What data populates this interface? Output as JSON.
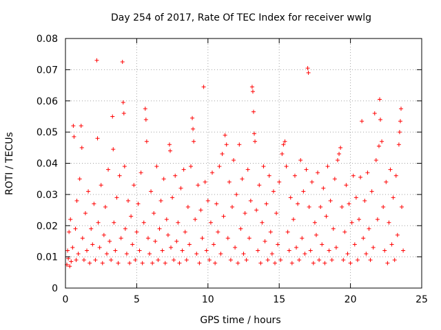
{
  "chart_data": {
    "type": "scatter",
    "title": "Day 254 of 2017, Rate Of TEC Index for receiver wwlg",
    "xlabel": "GPS time / hours",
    "ylabel": "ROTI / TECUs",
    "xlim": [
      0,
      25
    ],
    "ylim": [
      0,
      0.08
    ],
    "xticks": [
      0,
      5,
      10,
      15,
      20,
      25
    ],
    "xtick_labels": [
      "0",
      "5",
      "10",
      "15",
      "20",
      "25"
    ],
    "yticks": [
      0,
      0.01,
      0.02,
      0.03,
      0.04,
      0.05,
      0.06,
      0.07,
      0.08
    ],
    "ytick_labels": [
      "0",
      "0.01",
      "0.02",
      "0.03",
      "0.04",
      "0.05",
      "0.06",
      "0.07",
      "0.08"
    ],
    "grid": true,
    "marker": "+",
    "color": "#ff0000",
    "series": [
      {
        "name": "ROTI",
        "points": [
          [
            0.1,
            0.0075
          ],
          [
            0.15,
            0.012
          ],
          [
            0.2,
            0.0095
          ],
          [
            0.25,
            0.018
          ],
          [
            0.3,
            0.007
          ],
          [
            0.35,
            0.022
          ],
          [
            0.4,
            0.0085
          ],
          [
            0.5,
            0.013
          ],
          [
            0.55,
            0.052
          ],
          [
            0.6,
            0.0485
          ],
          [
            0.7,
            0.019
          ],
          [
            0.75,
            0.009
          ],
          [
            0.8,
            0.028
          ],
          [
            0.9,
            0.011
          ],
          [
            1.0,
            0.035
          ],
          [
            1.1,
            0.052
          ],
          [
            1.15,
            0.045
          ],
          [
            1.2,
            0.016
          ],
          [
            1.3,
            0.009
          ],
          [
            1.4,
            0.024
          ],
          [
            1.5,
            0.012
          ],
          [
            1.6,
            0.031
          ],
          [
            1.7,
            0.008
          ],
          [
            1.8,
            0.019
          ],
          [
            1.9,
            0.014
          ],
          [
            2.0,
            0.027
          ],
          [
            2.1,
            0.009
          ],
          [
            2.2,
            0.073
          ],
          [
            2.25,
            0.048
          ],
          [
            2.3,
            0.021
          ],
          [
            2.4,
            0.013
          ],
          [
            2.5,
            0.033
          ],
          [
            2.6,
            0.008
          ],
          [
            2.7,
            0.017
          ],
          [
            2.8,
            0.026
          ],
          [
            2.9,
            0.011
          ],
          [
            3.0,
            0.038
          ],
          [
            3.1,
            0.015
          ],
          [
            3.2,
            0.009
          ],
          [
            3.3,
            0.055
          ],
          [
            3.35,
            0.0445
          ],
          [
            3.4,
            0.021
          ],
          [
            3.5,
            0.012
          ],
          [
            3.6,
            0.029
          ],
          [
            3.7,
            0.008
          ],
          [
            3.8,
            0.036
          ],
          [
            3.9,
            0.016
          ],
          [
            4.0,
            0.0725
          ],
          [
            4.05,
            0.0595
          ],
          [
            4.1,
            0.056
          ],
          [
            4.15,
            0.039
          ],
          [
            4.2,
            0.019
          ],
          [
            4.3,
            0.011
          ],
          [
            4.4,
            0.028
          ],
          [
            4.5,
            0.008
          ],
          [
            4.6,
            0.023
          ],
          [
            4.7,
            0.014
          ],
          [
            4.8,
            0.033
          ],
          [
            4.9,
            0.009
          ],
          [
            5.0,
            0.018
          ],
          [
            5.1,
            0.027
          ],
          [
            5.2,
            0.012
          ],
          [
            5.3,
            0.037
          ],
          [
            5.4,
            0.008
          ],
          [
            5.5,
            0.021
          ],
          [
            5.6,
            0.0575
          ],
          [
            5.65,
            0.054
          ],
          [
            5.7,
            0.047
          ],
          [
            5.8,
            0.016
          ],
          [
            5.9,
            0.011
          ],
          [
            6.0,
            0.031
          ],
          [
            6.1,
            0.008
          ],
          [
            6.2,
            0.024
          ],
          [
            6.3,
            0.015
          ],
          [
            6.4,
            0.039
          ],
          [
            6.5,
            0.009
          ],
          [
            6.6,
            0.019
          ],
          [
            6.7,
            0.028
          ],
          [
            6.8,
            0.012
          ],
          [
            6.9,
            0.035
          ],
          [
            7.0,
            0.008
          ],
          [
            7.1,
            0.022
          ],
          [
            7.2,
            0.017
          ],
          [
            7.3,
            0.046
          ],
          [
            7.35,
            0.044
          ],
          [
            7.4,
            0.013
          ],
          [
            7.5,
            0.029
          ],
          [
            7.6,
            0.009
          ],
          [
            7.7,
            0.036
          ],
          [
            7.8,
            0.015
          ],
          [
            7.9,
            0.021
          ],
          [
            8.0,
            0.008
          ],
          [
            8.1,
            0.032
          ],
          [
            8.2,
            0.012
          ],
          [
            8.3,
            0.038
          ],
          [
            8.4,
            0.018
          ],
          [
            8.5,
            0.009
          ],
          [
            8.6,
            0.026
          ],
          [
            8.7,
            0.014
          ],
          [
            8.8,
            0.039
          ],
          [
            8.9,
            0.0545
          ],
          [
            8.95,
            0.051
          ],
          [
            9.0,
            0.047
          ],
          [
            9.1,
            0.022
          ],
          [
            9.2,
            0.011
          ],
          [
            9.3,
            0.033
          ],
          [
            9.4,
            0.008
          ],
          [
            9.5,
            0.025
          ],
          [
            9.6,
            0.016
          ],
          [
            9.7,
            0.0645
          ],
          [
            9.8,
            0.034
          ],
          [
            9.9,
            0.012
          ],
          [
            10.0,
            0.028
          ],
          [
            10.1,
            0.009
          ],
          [
            10.2,
            0.021
          ],
          [
            10.3,
            0.037
          ],
          [
            10.4,
            0.014
          ],
          [
            10.5,
            0.008
          ],
          [
            10.6,
            0.027
          ],
          [
            10.7,
            0.018
          ],
          [
            10.8,
            0.039
          ],
          [
            10.9,
            0.011
          ],
          [
            11.0,
            0.043
          ],
          [
            11.1,
            0.023
          ],
          [
            11.2,
            0.049
          ],
          [
            11.3,
            0.046
          ],
          [
            11.4,
            0.016
          ],
          [
            11.5,
            0.034
          ],
          [
            11.6,
            0.009
          ],
          [
            11.7,
            0.026
          ],
          [
            11.8,
            0.041
          ],
          [
            11.9,
            0.013
          ],
          [
            12.0,
            0.03
          ],
          [
            12.1,
            0.008
          ],
          [
            12.2,
            0.046
          ],
          [
            12.3,
            0.019
          ],
          [
            12.4,
            0.035
          ],
          [
            12.5,
            0.011
          ],
          [
            12.6,
            0.024
          ],
          [
            12.7,
            0.009
          ],
          [
            12.8,
            0.038
          ],
          [
            12.9,
            0.016
          ],
          [
            13.0,
            0.028
          ],
          [
            13.1,
            0.0645
          ],
          [
            13.15,
            0.063
          ],
          [
            13.2,
            0.0565
          ],
          [
            13.25,
            0.0495
          ],
          [
            13.3,
            0.047
          ],
          [
            13.4,
            0.025
          ],
          [
            13.5,
            0.012
          ],
          [
            13.6,
            0.033
          ],
          [
            13.7,
            0.008
          ],
          [
            13.8,
            0.021
          ],
          [
            13.9,
            0.039
          ],
          [
            14.0,
            0.015
          ],
          [
            14.1,
            0.027
          ],
          [
            14.2,
            0.009
          ],
          [
            14.3,
            0.036
          ],
          [
            14.4,
            0.018
          ],
          [
            14.5,
            0.011
          ],
          [
            14.6,
            0.031
          ],
          [
            14.7,
            0.008
          ],
          [
            14.8,
            0.024
          ],
          [
            14.9,
            0.014
          ],
          [
            15.0,
            0.034
          ],
          [
            15.1,
            0.009
          ],
          [
            15.2,
            0.043
          ],
          [
            15.3,
            0.046
          ],
          [
            15.4,
            0.047
          ],
          [
            15.5,
            0.039
          ],
          [
            15.6,
            0.018
          ],
          [
            15.7,
            0.012
          ],
          [
            15.8,
            0.029
          ],
          [
            15.9,
            0.008
          ],
          [
            16.0,
            0.022
          ],
          [
            16.1,
            0.036
          ],
          [
            16.2,
            0.013
          ],
          [
            16.3,
            0.027
          ],
          [
            16.4,
            0.009
          ],
          [
            16.5,
            0.041
          ],
          [
            16.6,
            0.016
          ],
          [
            16.7,
            0.031
          ],
          [
            16.8,
            0.011
          ],
          [
            16.9,
            0.038
          ],
          [
            17.0,
            0.0705
          ],
          [
            17.05,
            0.069
          ],
          [
            17.1,
            0.026
          ],
          [
            17.2,
            0.012
          ],
          [
            17.3,
            0.034
          ],
          [
            17.4,
            0.008
          ],
          [
            17.5,
            0.021
          ],
          [
            17.6,
            0.017
          ],
          [
            17.7,
            0.037
          ],
          [
            17.8,
            0.009
          ],
          [
            17.9,
            0.026
          ],
          [
            18.0,
            0.014
          ],
          [
            18.1,
            0.032
          ],
          [
            18.2,
            0.008
          ],
          [
            18.3,
            0.023
          ],
          [
            18.4,
            0.039
          ],
          [
            18.5,
            0.012
          ],
          [
            18.6,
            0.028
          ],
          [
            18.7,
            0.009
          ],
          [
            18.8,
            0.019
          ],
          [
            18.9,
            0.035
          ],
          [
            19.0,
            0.013
          ],
          [
            19.1,
            0.041
          ],
          [
            19.2,
            0.043
          ],
          [
            19.3,
            0.045
          ],
          [
            19.4,
            0.026
          ],
          [
            19.5,
            0.009
          ],
          [
            19.6,
            0.018
          ],
          [
            19.7,
            0.033
          ],
          [
            19.8,
            0.011
          ],
          [
            19.9,
            0.027
          ],
          [
            20.0,
            0.008
          ],
          [
            20.1,
            0.021
          ],
          [
            20.2,
            0.036
          ],
          [
            20.3,
            0.014
          ],
          [
            20.4,
            0.029
          ],
          [
            20.5,
            0.009
          ],
          [
            20.6,
            0.022
          ],
          [
            20.7,
            0.0355
          ],
          [
            20.8,
            0.0535
          ],
          [
            20.9,
            0.016
          ],
          [
            21.0,
            0.028
          ],
          [
            21.1,
            0.011
          ],
          [
            21.2,
            0.037
          ],
          [
            21.3,
            0.019
          ],
          [
            21.4,
            0.009
          ],
          [
            21.5,
            0.031
          ],
          [
            21.6,
            0.013
          ],
          [
            21.7,
            0.056
          ],
          [
            21.8,
            0.041
          ],
          [
            21.9,
            0.022
          ],
          [
            22.0,
            0.0455
          ],
          [
            22.05,
            0.0605
          ],
          [
            22.1,
            0.054
          ],
          [
            22.2,
            0.047
          ],
          [
            22.3,
            0.026
          ],
          [
            22.4,
            0.012
          ],
          [
            22.5,
            0.034
          ],
          [
            22.6,
            0.008
          ],
          [
            22.7,
            0.021
          ],
          [
            22.8,
            0.038
          ],
          [
            22.9,
            0.014
          ],
          [
            23.0,
            0.029
          ],
          [
            23.1,
            0.009
          ],
          [
            23.2,
            0.036
          ],
          [
            23.3,
            0.017
          ],
          [
            23.4,
            0.046
          ],
          [
            23.45,
            0.05
          ],
          [
            23.5,
            0.0535
          ],
          [
            23.55,
            0.0575
          ],
          [
            23.6,
            0.026
          ],
          [
            23.7,
            0.012
          ]
        ]
      }
    ]
  }
}
